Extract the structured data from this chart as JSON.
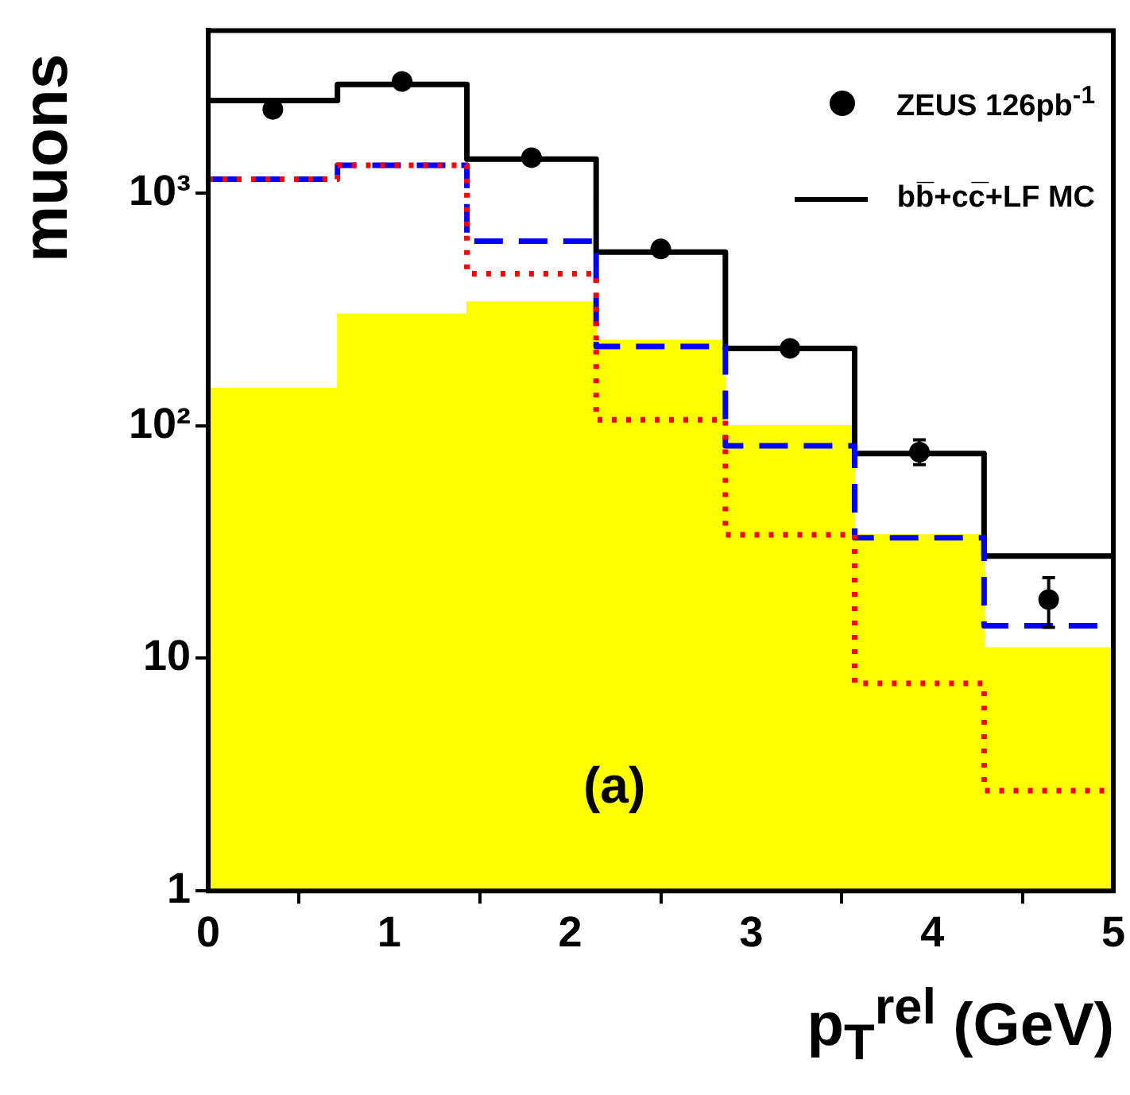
{
  "chart_data": {
    "type": "histogram",
    "xlabel": "p$_{T}$$^{rel}$ (GeV)",
    "ylabel": "muons",
    "log": "y",
    "grid": false,
    "legend": "top right",
    "bins": [
      0,
      0.714,
      1.429,
      2.143,
      2.857,
      3.571,
      4.286,
      5
    ],
    "xlim": [
      0,
      5
    ],
    "xticks": [
      0,
      1,
      2,
      3,
      4,
      5
    ],
    "ylim": [
      1,
      5000
    ],
    "yticks": [
      1,
      10,
      {
        "value": 100,
        "label": "10²"
      },
      {
        "value": 1000,
        "label": "10³"
      }
    ],
    "series": [
      {
        "type": "histogram",
        "color": "#ffff00",
        "values": [
          145,
          302,
          341,
          233,
          100,
          34,
          11.1
        ]
      },
      {
        "type": "histogram",
        "color": "#ff0000",
        "line_style": "dotted",
        "values": [
          1148,
          1318,
          450,
          106,
          34,
          7.8,
          2.7
        ]
      },
      {
        "type": "histogram",
        "color": "#0000ff",
        "line_style": "dashed",
        "values": [
          1148,
          1318,
          621,
          219,
          82,
          33,
          13.8
        ]
      },
      {
        "type": "histogram",
        "name": "bb̅+cc̅+LF MC",
        "color": "#000000",
        "line_style": "solid",
        "values": [
          2500,
          2930,
          1400,
          558,
          215,
          76,
          27.5
        ]
      },
      {
        "type": "scatter",
        "name": "ZEUS 126pb$^{-1}$",
        "color": "#000000",
        "marker": "circle",
        "x": [
          0.357,
          1.071,
          1.786,
          2.5,
          3.214,
          3.929,
          4.643
        ],
        "values": [
          2290,
          3020,
          1420,
          575,
          215,
          77,
          17.9
        ],
        "errors": [
          null,
          null,
          null,
          null,
          null,
          [
            68,
            87
          ],
          [
            13.6,
            22.2
          ]
        ]
      }
    ],
    "annotations": [
      "(a)"
    ]
  }
}
